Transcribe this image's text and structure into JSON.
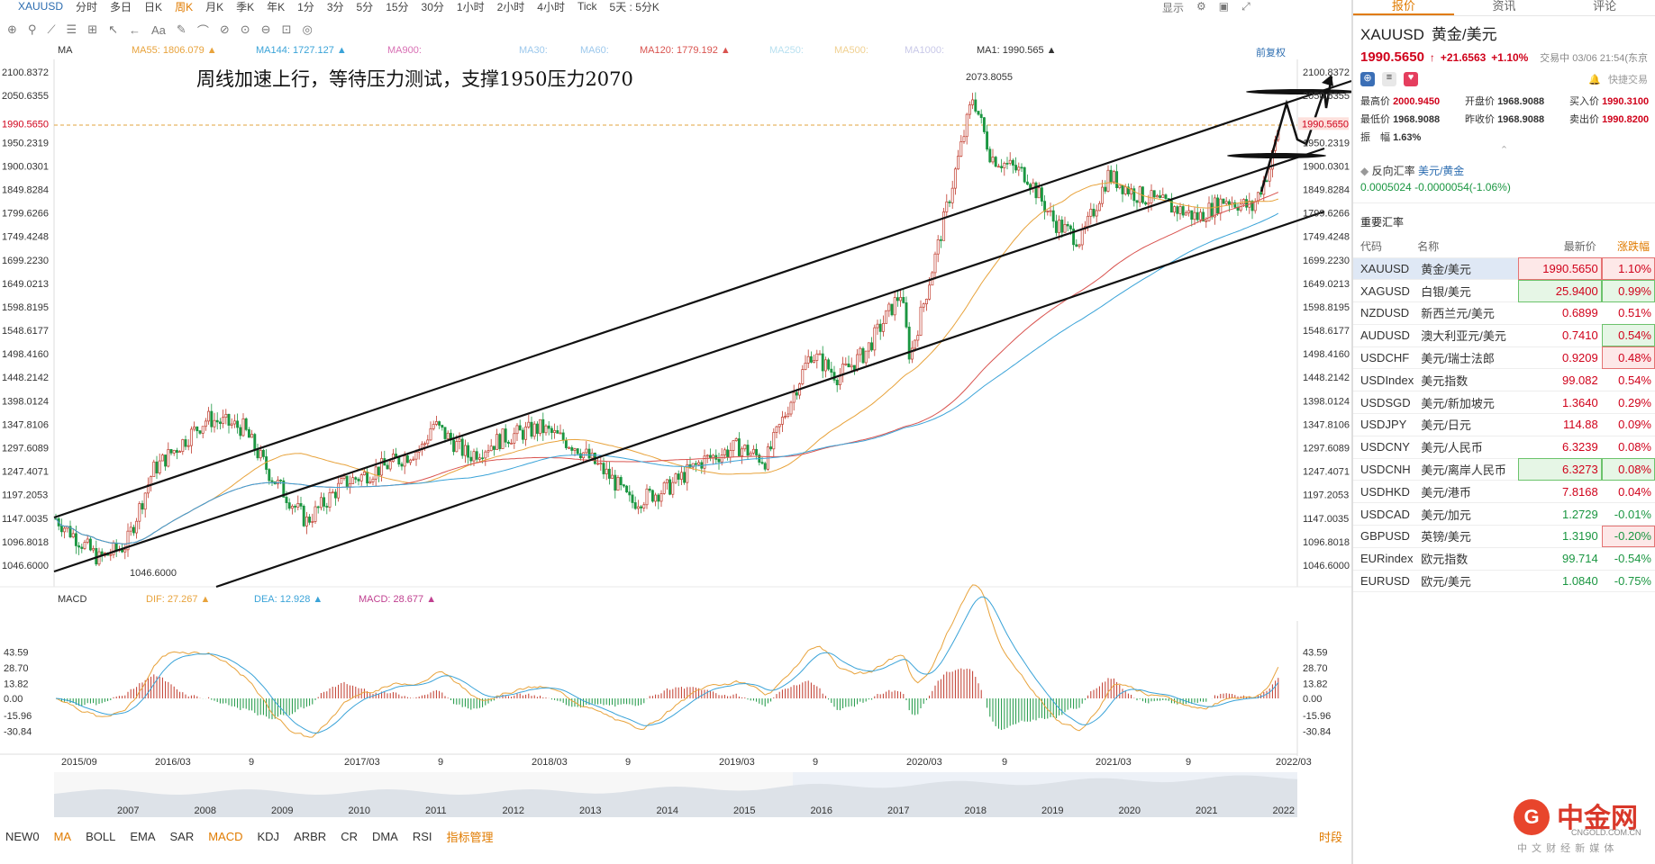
{
  "toolbar": {
    "symbol": "XAUUSD",
    "periods": [
      "分时",
      "多日",
      "日K",
      "周K",
      "月K",
      "季K",
      "年K",
      "1分",
      "3分",
      "5分",
      "15分",
      "30分",
      "1小时",
      "2小时",
      "4小时",
      "Tick",
      "5天 : 5分K"
    ],
    "active_period": "周K",
    "display": "显示",
    "tools": [
      "⊕",
      "⚲",
      "⟋",
      "☰",
      "⊞",
      "↖",
      "←",
      "Aa",
      "✎",
      "⌒",
      "⊘",
      "⊙",
      "⊖",
      "⊡",
      "◎"
    ]
  },
  "indicators": {
    "ma": "MA",
    "ma55": "MA55: 1806.079 ▲",
    "ma144": "MA144: 1727.127 ▲",
    "ma900": "MA900:",
    "ma30": "MA30:",
    "ma60": "MA60:",
    "ma120": "MA120: 1779.192 ▲",
    "ma250": "MA250:",
    "ma500": "MA500:",
    "ma1000": "MA1000:",
    "ma1": "MA1: 1990.565 ▲",
    "fq": "前复权"
  },
  "annotation": "周线加速上行，等待压力测试，支撑1950压力2070",
  "price_axis": [
    "2100.8372",
    "2050.6355",
    "1990.5650",
    "1950.2319",
    "1900.0301",
    "1849.8284",
    "1799.6266",
    "1749.4248",
    "1699.2230",
    "1649.0213",
    "1598.8195",
    "1548.6177",
    "1498.4160",
    "1448.2142",
    "1398.0124",
    "1347.8106",
    "1297.6089",
    "1247.4071",
    "1197.2053",
    "1147.0035",
    "1096.8018",
    "1046.6000"
  ],
  "high_label": "2073.8055",
  "low_label": "1046.6000",
  "macd": {
    "name": "MACD",
    "dif": "DIF: 27.267 ▲",
    "dea": "DEA: 12.928 ▲",
    "macd": "MACD: 28.677 ▲",
    "axis": [
      "43.59",
      "28.70",
      "13.82",
      "0.00",
      "-15.96",
      "-30.84"
    ]
  },
  "time_axis": [
    "2015/09",
    "2016/03",
    "9",
    "2017/03",
    "9",
    "2018/03",
    "9",
    "2019/03",
    "9",
    "2020/03",
    "9",
    "2021/03",
    "9",
    "2022/03"
  ],
  "nav_years": [
    "2007",
    "2008",
    "2009",
    "2010",
    "2011",
    "2012",
    "2013",
    "2014",
    "2015",
    "2016",
    "2017",
    "2018",
    "2019",
    "2020",
    "2021",
    "2022"
  ],
  "bottom_tabs": [
    "NEW0",
    "MA",
    "BOLL",
    "EMA",
    "SAR",
    "MACD",
    "KDJ",
    "ARBR",
    "CR",
    "DMA",
    "RSI",
    "指标管理"
  ],
  "bottom_right": "时段",
  "panel": {
    "tabs": [
      "报价",
      "资讯",
      "评论"
    ],
    "symbol": "XAUUSD",
    "name": "黄金/美元",
    "price": "1990.5650",
    "change": "+21.6563",
    "pct": "+1.10%",
    "time": "交易中 03/06 21:54(东京",
    "quick": "快捷交易",
    "stats": [
      [
        "最高价",
        "2000.9450",
        "r"
      ],
      [
        "开盘价",
        "1968.9088",
        "b"
      ],
      [
        "买入价",
        "1990.3100",
        "r"
      ],
      [
        "最低价",
        "1968.9088",
        "b"
      ],
      [
        "昨收价",
        "1968.9088",
        "b"
      ],
      [
        "卖出价",
        "1990.8200",
        "r"
      ],
      [
        "振　幅",
        "1.63%",
        "b"
      ]
    ],
    "inverse": {
      "label": "反向汇率",
      "pair": "美元/黄金",
      "value": "0.0005024",
      "change": "-0.0000054(-1.06%)"
    },
    "section": "重要汇率",
    "headers": [
      "代码",
      "名称",
      "最新价",
      "涨跌幅"
    ],
    "rows": [
      [
        "XAUUSD",
        "黄金/美元",
        "1990.5650",
        "1.10%",
        "r",
        "r",
        "hl"
      ],
      [
        "XAGUSD",
        "白银/美元",
        "25.9400",
        "0.99%",
        "g",
        "g",
        ""
      ],
      [
        "NZDUSD",
        "新西兰元/美元",
        "0.6899",
        "0.51%",
        "",
        "",
        ""
      ],
      [
        "AUDUSD",
        "澳大利亚元/美元",
        "0.7410",
        "0.54%",
        "",
        "g",
        ""
      ],
      [
        "USDCHF",
        "美元/瑞士法郎",
        "0.9209",
        "0.48%",
        "",
        "r",
        ""
      ],
      [
        "USDIndex",
        "美元指数",
        "99.082",
        "0.54%",
        "",
        "",
        ""
      ],
      [
        "USDSGD",
        "美元/新加坡元",
        "1.3640",
        "0.29%",
        "",
        "",
        ""
      ],
      [
        "USDJPY",
        "美元/日元",
        "114.88",
        "0.09%",
        "",
        "",
        ""
      ],
      [
        "USDCNY",
        "美元/人民币",
        "6.3239",
        "0.08%",
        "",
        "",
        ""
      ],
      [
        "USDCNH",
        "美元/离岸人民币",
        "6.3273",
        "0.08%",
        "g",
        "g",
        ""
      ],
      [
        "USDHKD",
        "美元/港币",
        "7.8168",
        "0.04%",
        "",
        "",
        ""
      ],
      [
        "USDCAD",
        "美元/加元",
        "1.2729",
        "-0.01%",
        "",
        "",
        ""
      ],
      [
        "GBPUSD",
        "英镑/美元",
        "1.3190",
        "-0.20%",
        "",
        "r",
        ""
      ],
      [
        "EURindex",
        "欧元指数",
        "99.714",
        "-0.54%",
        "",
        "",
        ""
      ],
      [
        "EURUSD",
        "欧元/美元",
        "1.0840",
        "-0.75%",
        "",
        "",
        ""
      ]
    ]
  },
  "logo": {
    "cn": "中金网",
    "url": "CNGOLD.COM.CN",
    "sub": "中 文 财 经 新 媒 体"
  },
  "colors": {
    "up": "#d0021b",
    "down": "#1a9641",
    "accent": "#e07b00",
    "ma_blue": "#3aa3d8",
    "ma_orange": "#e8a33c",
    "ma_red": "#d9534f"
  }
}
